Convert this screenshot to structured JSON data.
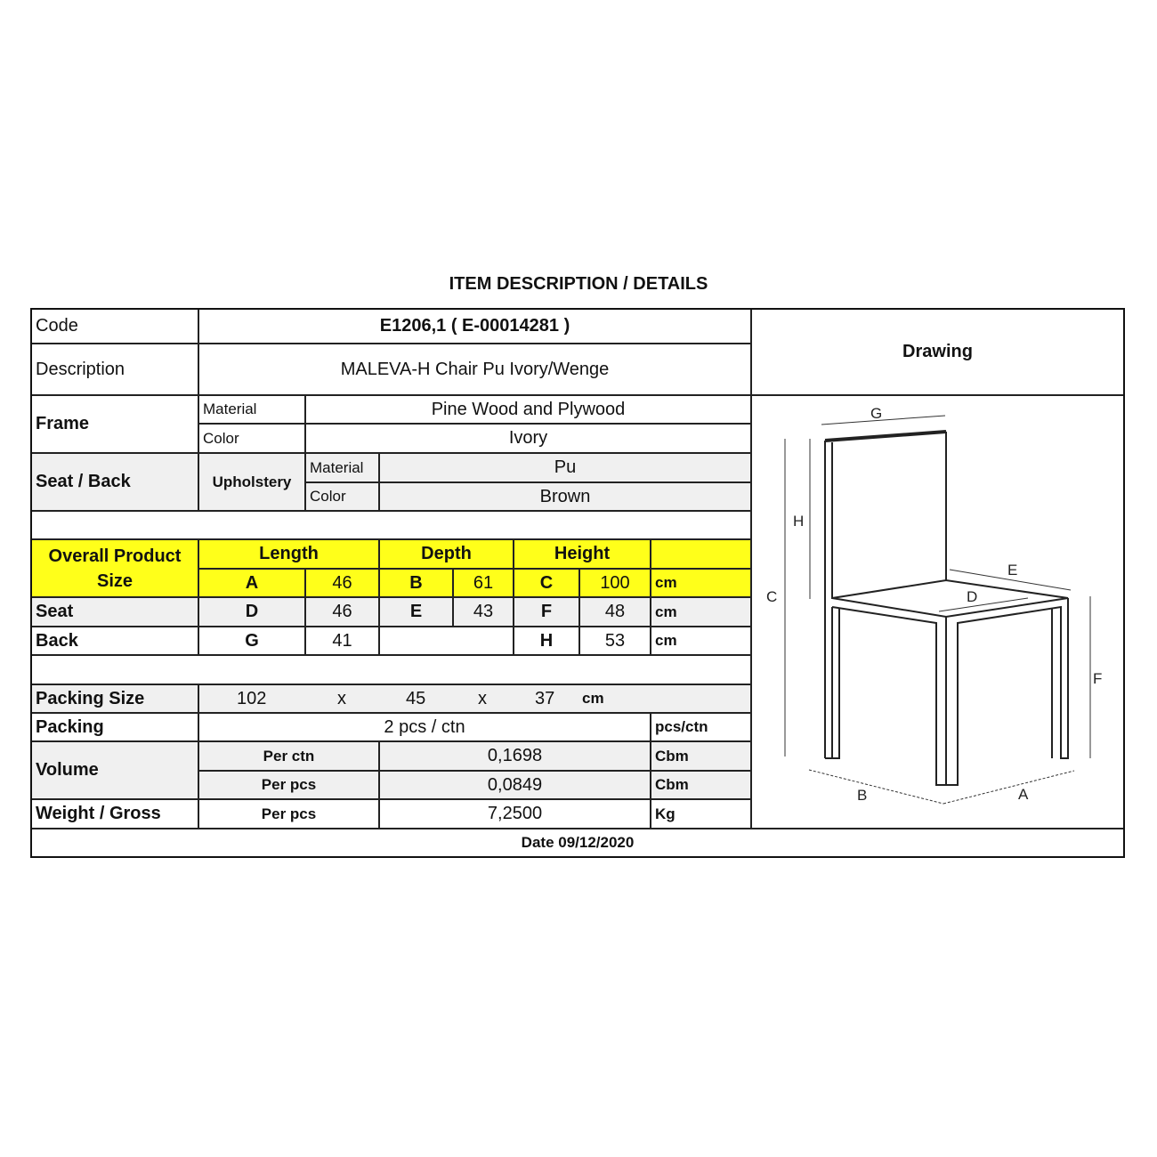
{
  "title": "ITEM DESCRIPTION / DETAILS",
  "code": {
    "label": "Code",
    "value": "E1206,1  ( E-00014281 )"
  },
  "description": {
    "label": "Description",
    "value": "MALEVA-H Chair Pu Ivory/Wenge"
  },
  "drawing_label": "Drawing",
  "frame": {
    "label": "Frame",
    "material_label": "Material",
    "material": "Pine Wood and Plywood",
    "color_label": "Color",
    "color": "Ivory"
  },
  "seat_back": {
    "label": "Seat / Back",
    "upholstery_label": "Upholstery",
    "material_label": "Material",
    "material": "Pu",
    "color_label": "Color",
    "color": "Brown"
  },
  "overall": {
    "label_line1": "Overall Product",
    "label_line2": "Size",
    "length_label": "Length",
    "depth_label": "Depth",
    "height_label": "Height",
    "a_label": "A",
    "a": "46",
    "b_label": "B",
    "b": "61",
    "c_label": "C",
    "c": "100",
    "unit": "cm"
  },
  "seat": {
    "label": "Seat",
    "d_label": "D",
    "d": "46",
    "e_label": "E",
    "e": "43",
    "f_label": "F",
    "f": "48",
    "unit": "cm"
  },
  "back": {
    "label": "Back",
    "g_label": "G",
    "g": "41",
    "h_label": "H",
    "h": "53",
    "unit": "cm"
  },
  "packing_size": {
    "label": "Packing Size",
    "l": "102",
    "x1": "x",
    "w": "45",
    "x2": "x",
    "h": "37",
    "unit": "cm"
  },
  "packing": {
    "label": "Packing",
    "value": "2 pcs / ctn",
    "unit": "pcs/ctn"
  },
  "volume": {
    "label": "Volume",
    "per_ctn_label": "Per ctn",
    "per_ctn": "0,1698",
    "per_ctn_unit": "Cbm",
    "per_pcs_label": "Per pcs",
    "per_pcs": "0,0849",
    "per_pcs_unit": "Cbm"
  },
  "weight": {
    "label": "Weight / Gross",
    "per_label": "Per pcs",
    "value": "7,2500",
    "unit": "Kg"
  },
  "date": "Date 09/12/2020",
  "drawing_labels": {
    "a": "A",
    "b": "B",
    "c": "C",
    "d": "D",
    "e": "E",
    "f": "F",
    "g": "G",
    "h": "H"
  }
}
